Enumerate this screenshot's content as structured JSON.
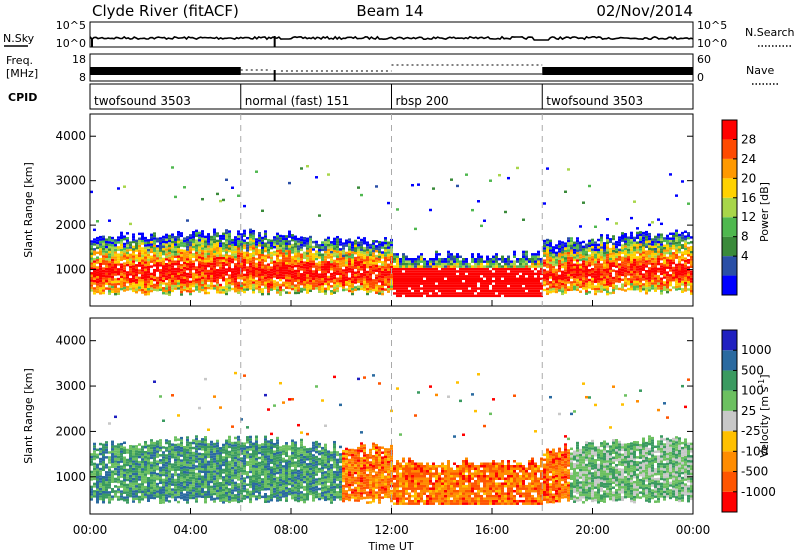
{
  "header": {
    "station": "Clyde River (fitACF)",
    "beam": "Beam 14",
    "date": "02/Nov/2014"
  },
  "summary_panel": {
    "nsky_label": "N.Sky",
    "nsky_ticks": [
      "10^5",
      "10^0"
    ],
    "nsearch_label": "N.Search",
    "freq_label_1": "Freq.",
    "freq_label_2": "[MHz]",
    "freq_ticks": [
      "18",
      "8"
    ],
    "nave_ticks": [
      "60",
      "0"
    ],
    "nave_label": "Nave",
    "cpid_label": "CPID",
    "cpid_segments": [
      {
        "name": "twofsound 3503",
        "start_hour": 0
      },
      {
        "name": "normal (fast) 151",
        "start_hour": 6
      },
      {
        "name": "rbsp 200",
        "start_hour": 12
      },
      {
        "name": "twofsound 3503",
        "start_hour": 18
      }
    ]
  },
  "chart_data": [
    {
      "type": "heatmap",
      "name": "power",
      "ylabel": "Slant Range [km]",
      "xlabel": "",
      "xlim_hours": [
        0,
        24
      ],
      "ylim_km": [
        180,
        4500
      ],
      "yticks": [
        1000,
        2000,
        3000,
        4000
      ],
      "vertical_dashed_lines_hours": [
        6,
        12,
        18
      ],
      "colorbar": {
        "label": "Power [dB]",
        "ticks": [
          "28",
          "24",
          "20",
          "16",
          "12",
          "8",
          "4"
        ],
        "colors": [
          "#0000ff",
          "#2a4fa6",
          "#3a8a3a",
          "#4fb84f",
          "#a8d64a",
          "#ffd200",
          "#ff9900",
          "#ff4a00",
          "#ff0000"
        ]
      },
      "echo_band": {
        "lower_km_start": 700,
        "upper_km": [
          1700,
          1750,
          1600,
          1500,
          1400,
          1300,
          1400,
          1700
        ]
      }
    },
    {
      "type": "heatmap",
      "name": "velocity",
      "ylabel": "Slant Range [km]",
      "xlabel": "Time UT",
      "xlim_hours": [
        0,
        24
      ],
      "ylim_km": [
        180,
        4500
      ],
      "yticks": [
        1000,
        2000,
        3000,
        4000
      ],
      "vertical_dashed_lines_hours": [
        6,
        12,
        18
      ],
      "colorbar": {
        "label": "Velocity [m s^-1]",
        "ticks": [
          "1000",
          "500",
          "100",
          "25",
          "-25",
          "-100",
          "-500",
          "-1000"
        ],
        "colors": [
          "#ff0000",
          "#ff5500",
          "#ff8c00",
          "#ffc000",
          "#c8c8c8",
          "#6cc060",
          "#3a9a60",
          "#2a6aa0",
          "#2020c0"
        ]
      }
    }
  ],
  "time_ticks": [
    "00:00",
    "04:00",
    "08:00",
    "12:00",
    "16:00",
    "20:00",
    "00:00"
  ]
}
